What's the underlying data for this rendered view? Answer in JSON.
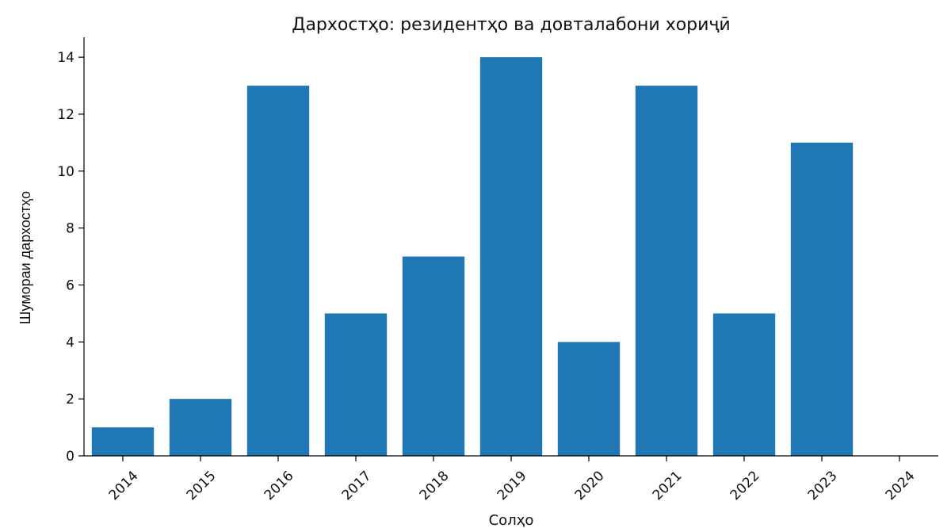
{
  "chart_data": {
    "type": "bar",
    "title": "Дархостҳо: резидентҳо ва довталабони хориҷӣ",
    "xlabel": "Солҳо",
    "ylabel": "Шумораи дархостҳо",
    "categories": [
      "2014",
      "2015",
      "2016",
      "2017",
      "2018",
      "2019",
      "2020",
      "2021",
      "2022",
      "2023",
      "2024"
    ],
    "values": [
      1,
      2,
      13,
      5,
      7,
      14,
      4,
      13,
      5,
      11,
      0
    ],
    "ylim": [
      0,
      14.7
    ],
    "yticks": [
      0,
      2,
      4,
      6,
      8,
      10,
      12,
      14
    ],
    "bar_color": "#1f77b4",
    "grid": false,
    "legend": "none"
  }
}
